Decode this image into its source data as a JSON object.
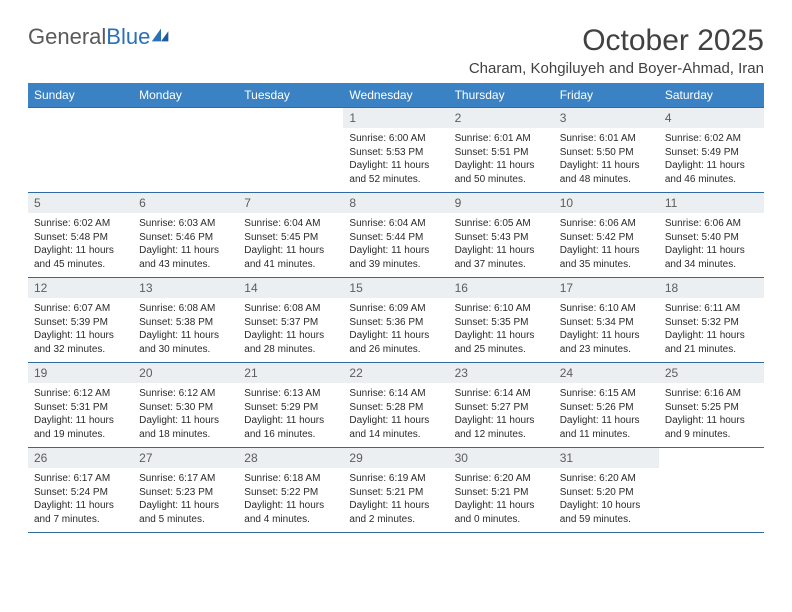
{
  "logo": {
    "text_a": "General",
    "text_b": "Blue"
  },
  "title": "October 2025",
  "location": "Charam, Kohgiluyeh and Boyer-Ahmad, Iran",
  "colors": {
    "header_bg": "#3a82c4",
    "header_text": "#ffffff",
    "cell_border": "#2f6aa3",
    "daynum_bg": "#eceff1",
    "daynum_text": "#5c5c5c",
    "body_text": "#2b2b2b",
    "title_text": "#414141",
    "logo_gray": "#5a5a5a",
    "logo_blue": "#2a71b8"
  },
  "calendar": {
    "type": "table",
    "columns": [
      "Sunday",
      "Monday",
      "Tuesday",
      "Wednesday",
      "Thursday",
      "Friday",
      "Saturday"
    ],
    "weeks": [
      [
        null,
        null,
        null,
        {
          "n": "1",
          "sr": "6:00 AM",
          "ss": "5:53 PM",
          "dl": "11 hours and 52 minutes."
        },
        {
          "n": "2",
          "sr": "6:01 AM",
          "ss": "5:51 PM",
          "dl": "11 hours and 50 minutes."
        },
        {
          "n": "3",
          "sr": "6:01 AM",
          "ss": "5:50 PM",
          "dl": "11 hours and 48 minutes."
        },
        {
          "n": "4",
          "sr": "6:02 AM",
          "ss": "5:49 PM",
          "dl": "11 hours and 46 minutes."
        }
      ],
      [
        {
          "n": "5",
          "sr": "6:02 AM",
          "ss": "5:48 PM",
          "dl": "11 hours and 45 minutes."
        },
        {
          "n": "6",
          "sr": "6:03 AM",
          "ss": "5:46 PM",
          "dl": "11 hours and 43 minutes."
        },
        {
          "n": "7",
          "sr": "6:04 AM",
          "ss": "5:45 PM",
          "dl": "11 hours and 41 minutes."
        },
        {
          "n": "8",
          "sr": "6:04 AM",
          "ss": "5:44 PM",
          "dl": "11 hours and 39 minutes."
        },
        {
          "n": "9",
          "sr": "6:05 AM",
          "ss": "5:43 PM",
          "dl": "11 hours and 37 minutes."
        },
        {
          "n": "10",
          "sr": "6:06 AM",
          "ss": "5:42 PM",
          "dl": "11 hours and 35 minutes."
        },
        {
          "n": "11",
          "sr": "6:06 AM",
          "ss": "5:40 PM",
          "dl": "11 hours and 34 minutes."
        }
      ],
      [
        {
          "n": "12",
          "sr": "6:07 AM",
          "ss": "5:39 PM",
          "dl": "11 hours and 32 minutes."
        },
        {
          "n": "13",
          "sr": "6:08 AM",
          "ss": "5:38 PM",
          "dl": "11 hours and 30 minutes."
        },
        {
          "n": "14",
          "sr": "6:08 AM",
          "ss": "5:37 PM",
          "dl": "11 hours and 28 minutes."
        },
        {
          "n": "15",
          "sr": "6:09 AM",
          "ss": "5:36 PM",
          "dl": "11 hours and 26 minutes."
        },
        {
          "n": "16",
          "sr": "6:10 AM",
          "ss": "5:35 PM",
          "dl": "11 hours and 25 minutes."
        },
        {
          "n": "17",
          "sr": "6:10 AM",
          "ss": "5:34 PM",
          "dl": "11 hours and 23 minutes."
        },
        {
          "n": "18",
          "sr": "6:11 AM",
          "ss": "5:32 PM",
          "dl": "11 hours and 21 minutes."
        }
      ],
      [
        {
          "n": "19",
          "sr": "6:12 AM",
          "ss": "5:31 PM",
          "dl": "11 hours and 19 minutes."
        },
        {
          "n": "20",
          "sr": "6:12 AM",
          "ss": "5:30 PM",
          "dl": "11 hours and 18 minutes."
        },
        {
          "n": "21",
          "sr": "6:13 AM",
          "ss": "5:29 PM",
          "dl": "11 hours and 16 minutes."
        },
        {
          "n": "22",
          "sr": "6:14 AM",
          "ss": "5:28 PM",
          "dl": "11 hours and 14 minutes."
        },
        {
          "n": "23",
          "sr": "6:14 AM",
          "ss": "5:27 PM",
          "dl": "11 hours and 12 minutes."
        },
        {
          "n": "24",
          "sr": "6:15 AM",
          "ss": "5:26 PM",
          "dl": "11 hours and 11 minutes."
        },
        {
          "n": "25",
          "sr": "6:16 AM",
          "ss": "5:25 PM",
          "dl": "11 hours and 9 minutes."
        }
      ],
      [
        {
          "n": "26",
          "sr": "6:17 AM",
          "ss": "5:24 PM",
          "dl": "11 hours and 7 minutes."
        },
        {
          "n": "27",
          "sr": "6:17 AM",
          "ss": "5:23 PM",
          "dl": "11 hours and 5 minutes."
        },
        {
          "n": "28",
          "sr": "6:18 AM",
          "ss": "5:22 PM",
          "dl": "11 hours and 4 minutes."
        },
        {
          "n": "29",
          "sr": "6:19 AM",
          "ss": "5:21 PM",
          "dl": "11 hours and 2 minutes."
        },
        {
          "n": "30",
          "sr": "6:20 AM",
          "ss": "5:21 PM",
          "dl": "11 hours and 0 minutes."
        },
        {
          "n": "31",
          "sr": "6:20 AM",
          "ss": "5:20 PM",
          "dl": "10 hours and 59 minutes."
        },
        null
      ]
    ],
    "labels": {
      "sunrise": "Sunrise:",
      "sunset": "Sunset:",
      "daylight": "Daylight:"
    }
  }
}
